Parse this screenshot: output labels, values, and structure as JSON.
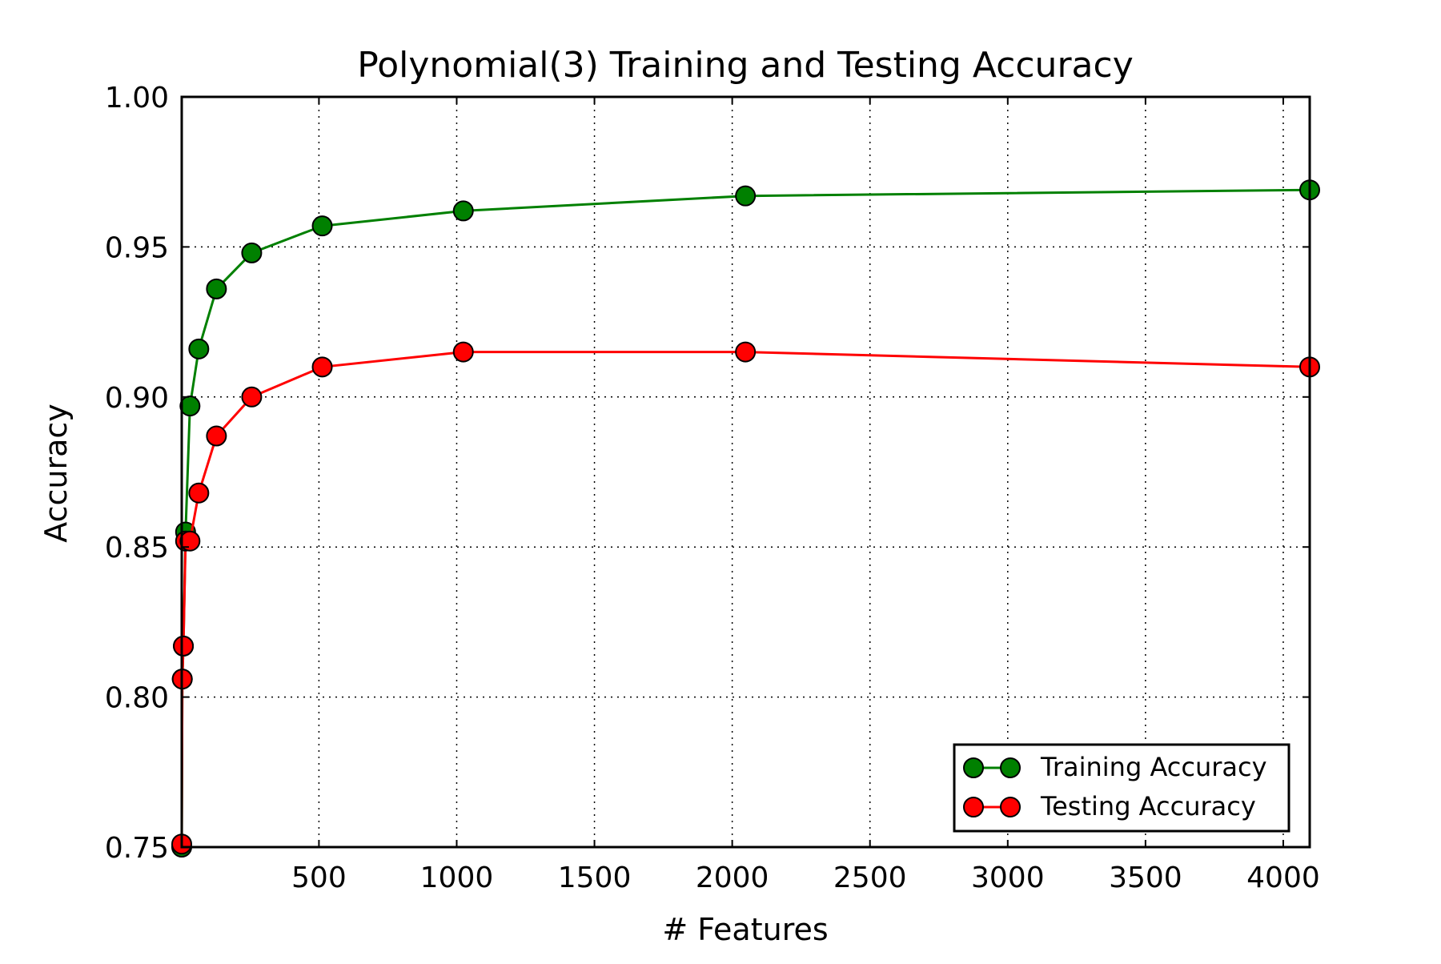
{
  "chart_data": {
    "type": "line",
    "title": "Polynomial(3) Training and Testing Accuracy",
    "xlabel": "# Features",
    "ylabel": "Accuracy",
    "xlim": [
      2,
      4096
    ],
    "ylim": [
      0.75,
      1.0
    ],
    "xticks": [
      500,
      1000,
      1500,
      2000,
      2500,
      3000,
      3500,
      4000
    ],
    "xtick_labels": [
      "500",
      "1000",
      "1500",
      "2000",
      "2500",
      "3000",
      "3500",
      "4000"
    ],
    "yticks": [
      0.75,
      0.8,
      0.85,
      0.9,
      0.95,
      1.0
    ],
    "ytick_labels": [
      "0.75",
      "0.80",
      "0.85",
      "0.90",
      "0.95",
      "1.00"
    ],
    "grid": true,
    "legend_position": "bottom-right",
    "x": [
      2,
      4,
      8,
      16,
      32,
      64,
      128,
      256,
      512,
      1024,
      2048,
      4096
    ],
    "series": [
      {
        "name": "Training Accuracy",
        "color": "#008000",
        "values": [
          0.75,
          0.806,
          0.817,
          0.855,
          0.897,
          0.916,
          0.936,
          0.948,
          0.957,
          0.962,
          0.967,
          0.969
        ]
      },
      {
        "name": "Testing Accuracy",
        "color": "#ff0000",
        "values": [
          0.751,
          0.806,
          0.817,
          0.852,
          0.852,
          0.868,
          0.887,
          0.9,
          0.91,
          0.915,
          0.915,
          0.91
        ]
      }
    ]
  }
}
